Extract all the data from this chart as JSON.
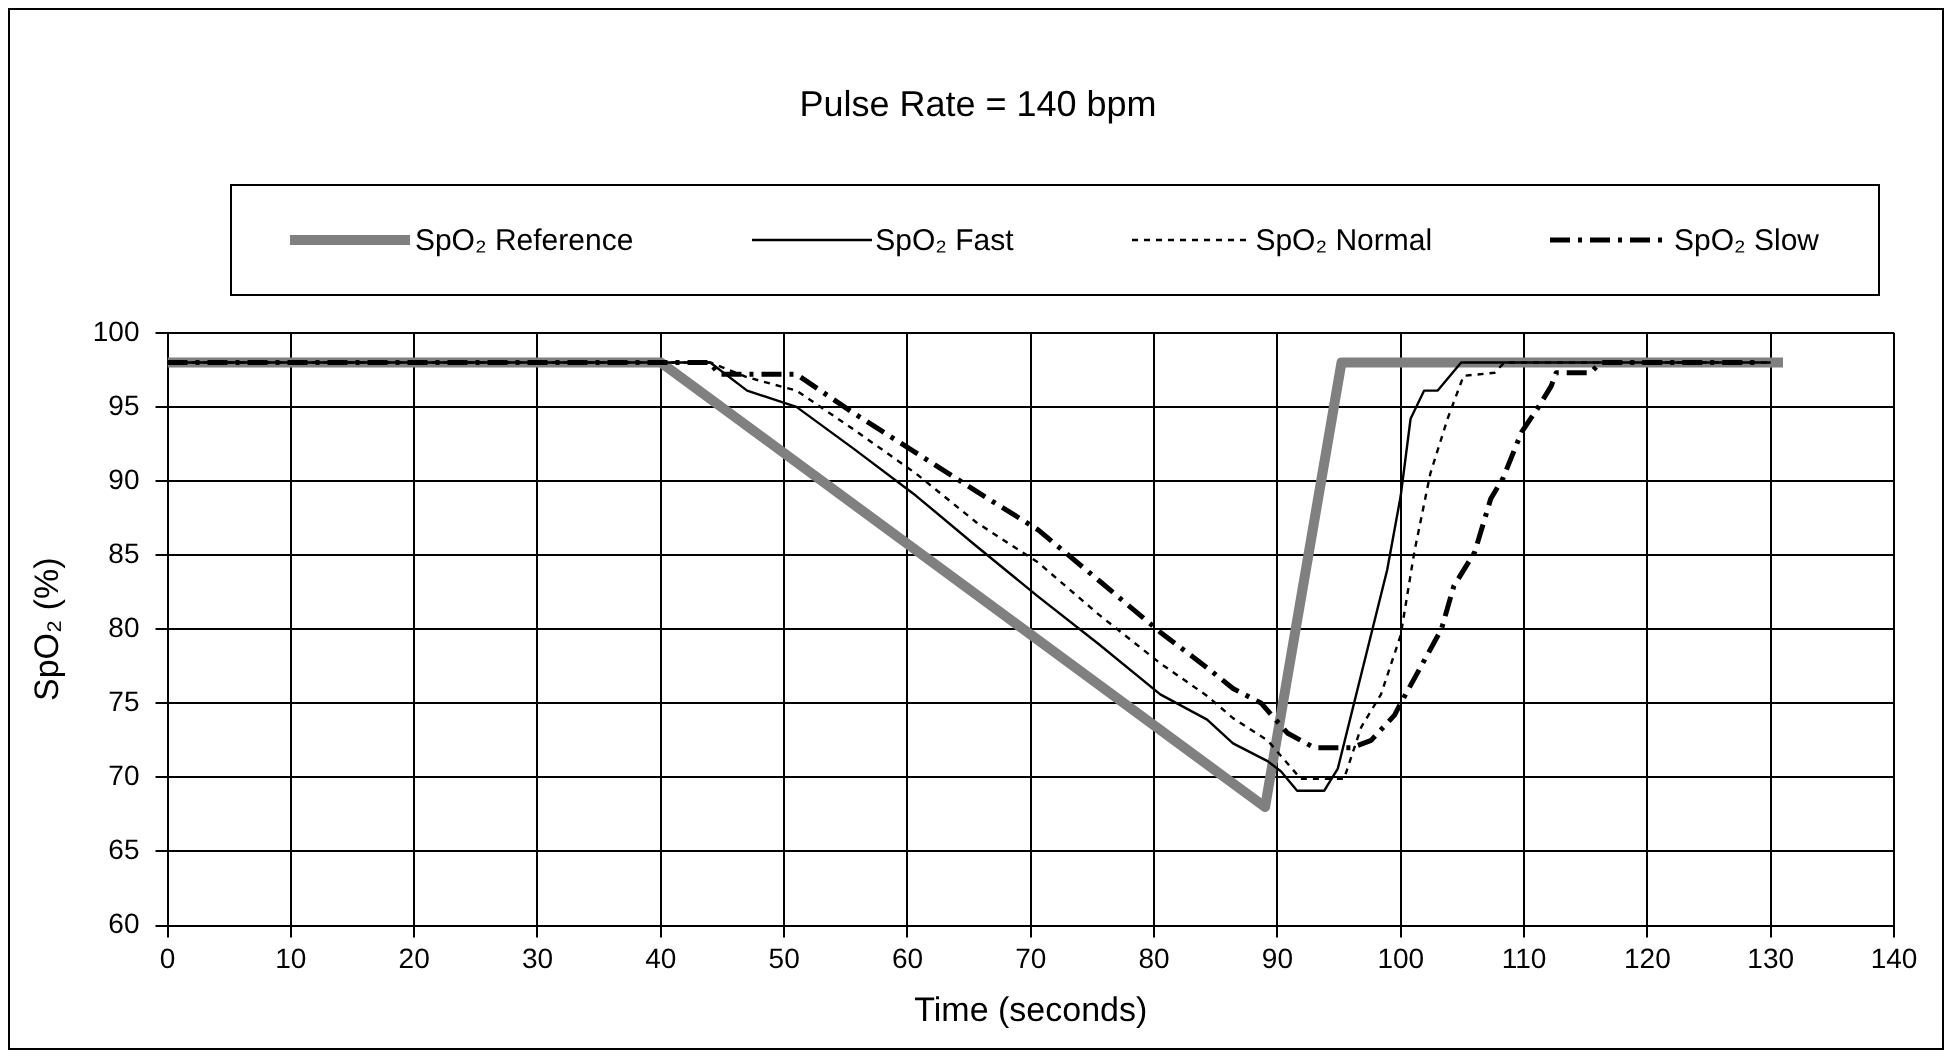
{
  "chart_data": {
    "type": "line",
    "title": "Pulse Rate = 140 bpm",
    "xlabel": "Time (seconds)",
    "ylabel": "SpO₂ (%)",
    "xlim": [
      0,
      140
    ],
    "xticks": [
      0,
      10,
      20,
      30,
      40,
      50,
      60,
      70,
      80,
      90,
      100,
      110,
      120,
      130,
      140
    ],
    "ylim": [
      60,
      100
    ],
    "yticks": [
      60,
      65,
      70,
      75,
      80,
      85,
      90,
      95,
      100
    ],
    "grid": true,
    "legend": "top",
    "marker": "none",
    "series": [
      {
        "name": "SpO₂ Reference",
        "color": "#808080",
        "line_style": "solid",
        "x": [
          0,
          40,
          89,
          95.2,
          131
        ],
        "values": [
          98,
          98,
          68,
          98,
          98
        ]
      },
      {
        "name": "SpO₂ Fast",
        "color": "#000000",
        "line_style": "solid",
        "x": [
          0,
          44,
          47,
          51,
          55.6,
          60.7,
          65.6,
          70.6,
          75.5,
          80.5,
          84.3,
          86.4,
          89.2,
          90.3,
          91.6,
          93.8,
          94.9,
          98.9,
          100,
          100.8,
          101.9,
          103,
          104.9,
          130
        ],
        "values": [
          98,
          98,
          96.1,
          95,
          92.2,
          89,
          85.6,
          82.2,
          79,
          75.6,
          73.9,
          72.3,
          71.1,
          70.4,
          69.1,
          69.1,
          70.6,
          84,
          89,
          94.2,
          96.1,
          96.1,
          98,
          98
        ]
      },
      {
        "name": "SpO₂ Normal",
        "color": "#000000",
        "line_style": "dotted",
        "x": [
          0,
          44,
          47,
          51,
          55.6,
          60.7,
          65.6,
          70.6,
          75.5,
          80.5,
          84.3,
          86.4,
          89.2,
          91.9,
          95.4,
          96.8,
          98.4,
          100,
          101.1,
          102.4,
          103.8,
          105.1,
          107.6,
          108.4,
          130
        ],
        "values": [
          98,
          98,
          97,
          96.1,
          93.5,
          90.5,
          87.2,
          84.5,
          81,
          77.7,
          75.5,
          74,
          72.5,
          69.9,
          69.9,
          73.4,
          75.6,
          79.6,
          85.2,
          90.5,
          94.2,
          97.1,
          97.3,
          98,
          98
        ]
      },
      {
        "name": "SpO₂ Slow",
        "color": "#000000",
        "line_style": "dashed",
        "x": [
          0,
          44,
          44.7,
          51,
          55.6,
          60.7,
          65.6,
          70.6,
          75.5,
          80.5,
          84.3,
          86.4,
          88.7,
          90.8,
          93,
          96,
          97.6,
          99.5,
          100,
          103.3,
          104.3,
          106,
          107.3,
          108.3,
          109.8,
          111.1,
          112.2,
          112.6,
          115.4,
          116.2,
          129
        ],
        "values": [
          98,
          98,
          97.2,
          97.2,
          94.6,
          91.9,
          89.3,
          86.7,
          83.3,
          79.8,
          77.4,
          76,
          75,
          73,
          72,
          72,
          72.5,
          74.2,
          75,
          80,
          82.9,
          85.2,
          88.8,
          90.2,
          93.3,
          94.9,
          96.4,
          97.3,
          97.3,
          98,
          98
        ]
      }
    ]
  }
}
